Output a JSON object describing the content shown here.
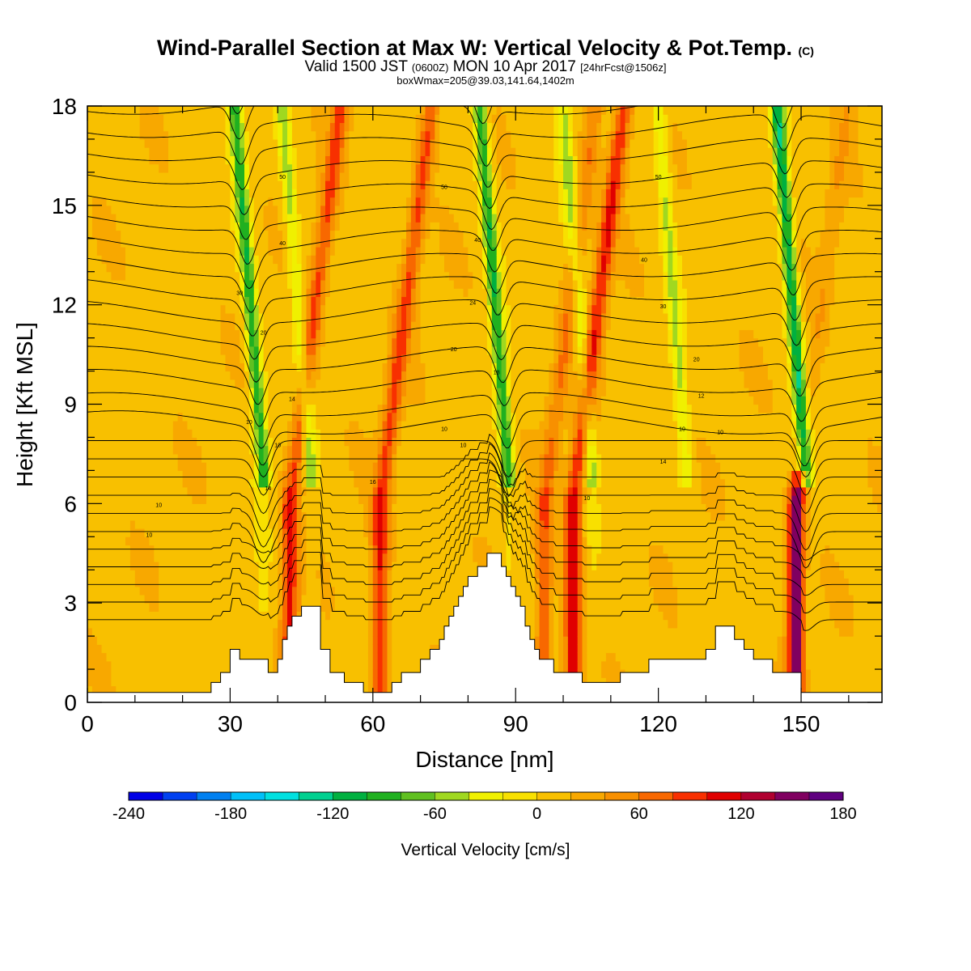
{
  "title": {
    "main": "Wind-Parallel Section at Max W: Vertical Velocity & Pot.Temp.",
    "mark": "(C)",
    "valid_prefix": "Valid 1500 JST",
    "valid_utc": "(0600Z)",
    "valid_date": "MON 10 Apr 2017",
    "forecast": "[24hrFcst@1506z]",
    "box": "boxWmax=205@39.03,141.64,1402m"
  },
  "chart_data": {
    "type": "heatmap",
    "xlabel": "Distance [nm]",
    "ylabel": "Height [Kft MSL]",
    "xlim": [
      0,
      167
    ],
    "ylim": [
      0,
      18
    ],
    "x_ticks": [
      "0",
      "30",
      "60",
      "90",
      "120",
      "150"
    ],
    "y_ticks": [
      "0",
      "3",
      "6",
      "9",
      "12",
      "15",
      "18"
    ],
    "colorbar": {
      "label": "Vertical Velocity [cm/s]",
      "min": -240,
      "max": 180,
      "step": 20,
      "tick_labels": [
        "-240",
        "-180",
        "-120",
        "-60",
        "0",
        "60",
        "120",
        "180"
      ],
      "colors": [
        "#0000e6",
        "#0040f0",
        "#0080f0",
        "#00c0f8",
        "#00e0e0",
        "#00d090",
        "#00b040",
        "#20b020",
        "#60c020",
        "#a0d820",
        "#f0f000",
        "#f8e000",
        "#f8c000",
        "#f8a800",
        "#f89000",
        "#f86800",
        "#f83000",
        "#e00000",
        "#b00030",
        "#800060",
        "#600080"
      ]
    },
    "updraft_columns": [
      {
        "x": 42.5,
        "peak": 90
      },
      {
        "x": 61.5,
        "peak": 90
      },
      {
        "x": 96,
        "peak": 60
      },
      {
        "x": 102,
        "peak": 110
      },
      {
        "x": 149,
        "peak": 150
      }
    ],
    "downdraft_columns": [
      {
        "x": 37,
        "peak": -110
      },
      {
        "x": 47,
        "peak": -60
      },
      {
        "x": 88.5,
        "peak": -110
      },
      {
        "x": 106,
        "peak": -60
      },
      {
        "x": 126,
        "peak": -55
      },
      {
        "x": 151,
        "peak": -130
      }
    ],
    "terrain": {
      "x": [
        0,
        24,
        26,
        28,
        30,
        32,
        34,
        36,
        38,
        40,
        41,
        42,
        43,
        45,
        47,
        49,
        51,
        52,
        54,
        56,
        58,
        60,
        62,
        64,
        66,
        68,
        70,
        72,
        74,
        75,
        76,
        77,
        78,
        79,
        80,
        81,
        82,
        83,
        84,
        85,
        86,
        87,
        88,
        89,
        90,
        91,
        92,
        93,
        94,
        95,
        96,
        98,
        100,
        102,
        104,
        106,
        108,
        110,
        112,
        114,
        116,
        118,
        120,
        122,
        124,
        126,
        128,
        130,
        132,
        134,
        136,
        138,
        140,
        142,
        144,
        146,
        148,
        150,
        152,
        167
      ],
      "height": [
        0.3,
        0.3,
        0.6,
        0.9,
        1.6,
        1.3,
        1.3,
        1.3,
        0.9,
        1.3,
        1.9,
        2.3,
        2.6,
        2.9,
        2.9,
        1.6,
        0.9,
        0.9,
        0.6,
        0.6,
        0.3,
        0.3,
        0.3,
        0.6,
        0.9,
        0.9,
        1.3,
        1.6,
        1.9,
        2.3,
        2.6,
        2.9,
        3.2,
        3.5,
        3.8,
        3.8,
        4.1,
        4.1,
        4.5,
        4.5,
        4.5,
        4.1,
        3.8,
        3.5,
        3.2,
        2.9,
        2.3,
        1.9,
        1.6,
        1.3,
        1.3,
        0.9,
        0.9,
        0.9,
        0.6,
        0.6,
        0.6,
        0.6,
        0.9,
        0.9,
        0.9,
        1.3,
        1.3,
        1.3,
        1.3,
        1.3,
        1.3,
        1.6,
        2.3,
        2.3,
        1.9,
        1.6,
        1.3,
        1.3,
        0.9,
        0.9,
        0.9,
        0.3,
        0.3,
        0.3
      ]
    },
    "contour_labels": [
      {
        "x": 41,
        "y": 15.8,
        "text": "50"
      },
      {
        "x": 75,
        "y": 15.5,
        "text": "50"
      },
      {
        "x": 120,
        "y": 15.8,
        "text": "50"
      },
      {
        "x": 41,
        "y": 13.8,
        "text": "40"
      },
      {
        "x": 82,
        "y": 13.9,
        "text": "40"
      },
      {
        "x": 117,
        "y": 13.3,
        "text": "40"
      },
      {
        "x": 32,
        "y": 12.3,
        "text": "30"
      },
      {
        "x": 81,
        "y": 12.0,
        "text": "24"
      },
      {
        "x": 121,
        "y": 11.9,
        "text": "30"
      },
      {
        "x": 37,
        "y": 11.1,
        "text": "20"
      },
      {
        "x": 77,
        "y": 10.6,
        "text": "20"
      },
      {
        "x": 128,
        "y": 10.3,
        "text": "20"
      },
      {
        "x": 86,
        "y": 9.9,
        "text": "18"
      },
      {
        "x": 43,
        "y": 9.1,
        "text": "14"
      },
      {
        "x": 129,
        "y": 9.2,
        "text": "12"
      },
      {
        "x": 34,
        "y": 8.4,
        "text": "10"
      },
      {
        "x": 75,
        "y": 8.2,
        "text": "10"
      },
      {
        "x": 125,
        "y": 8.2,
        "text": "10"
      },
      {
        "x": 133,
        "y": 8.1,
        "text": "10"
      },
      {
        "x": 40,
        "y": 7.7,
        "text": "10"
      },
      {
        "x": 79,
        "y": 7.7,
        "text": "10"
      },
      {
        "x": 121,
        "y": 7.2,
        "text": "14"
      },
      {
        "x": 38,
        "y": 6.4,
        "text": "14"
      },
      {
        "x": 60,
        "y": 6.6,
        "text": "16"
      },
      {
        "x": 89,
        "y": 6.8,
        "text": "4"
      },
      {
        "x": 15,
        "y": 5.9,
        "text": "10"
      },
      {
        "x": 105,
        "y": 6.1,
        "text": "10"
      },
      {
        "x": 13,
        "y": 5.0,
        "text": "10"
      }
    ]
  }
}
